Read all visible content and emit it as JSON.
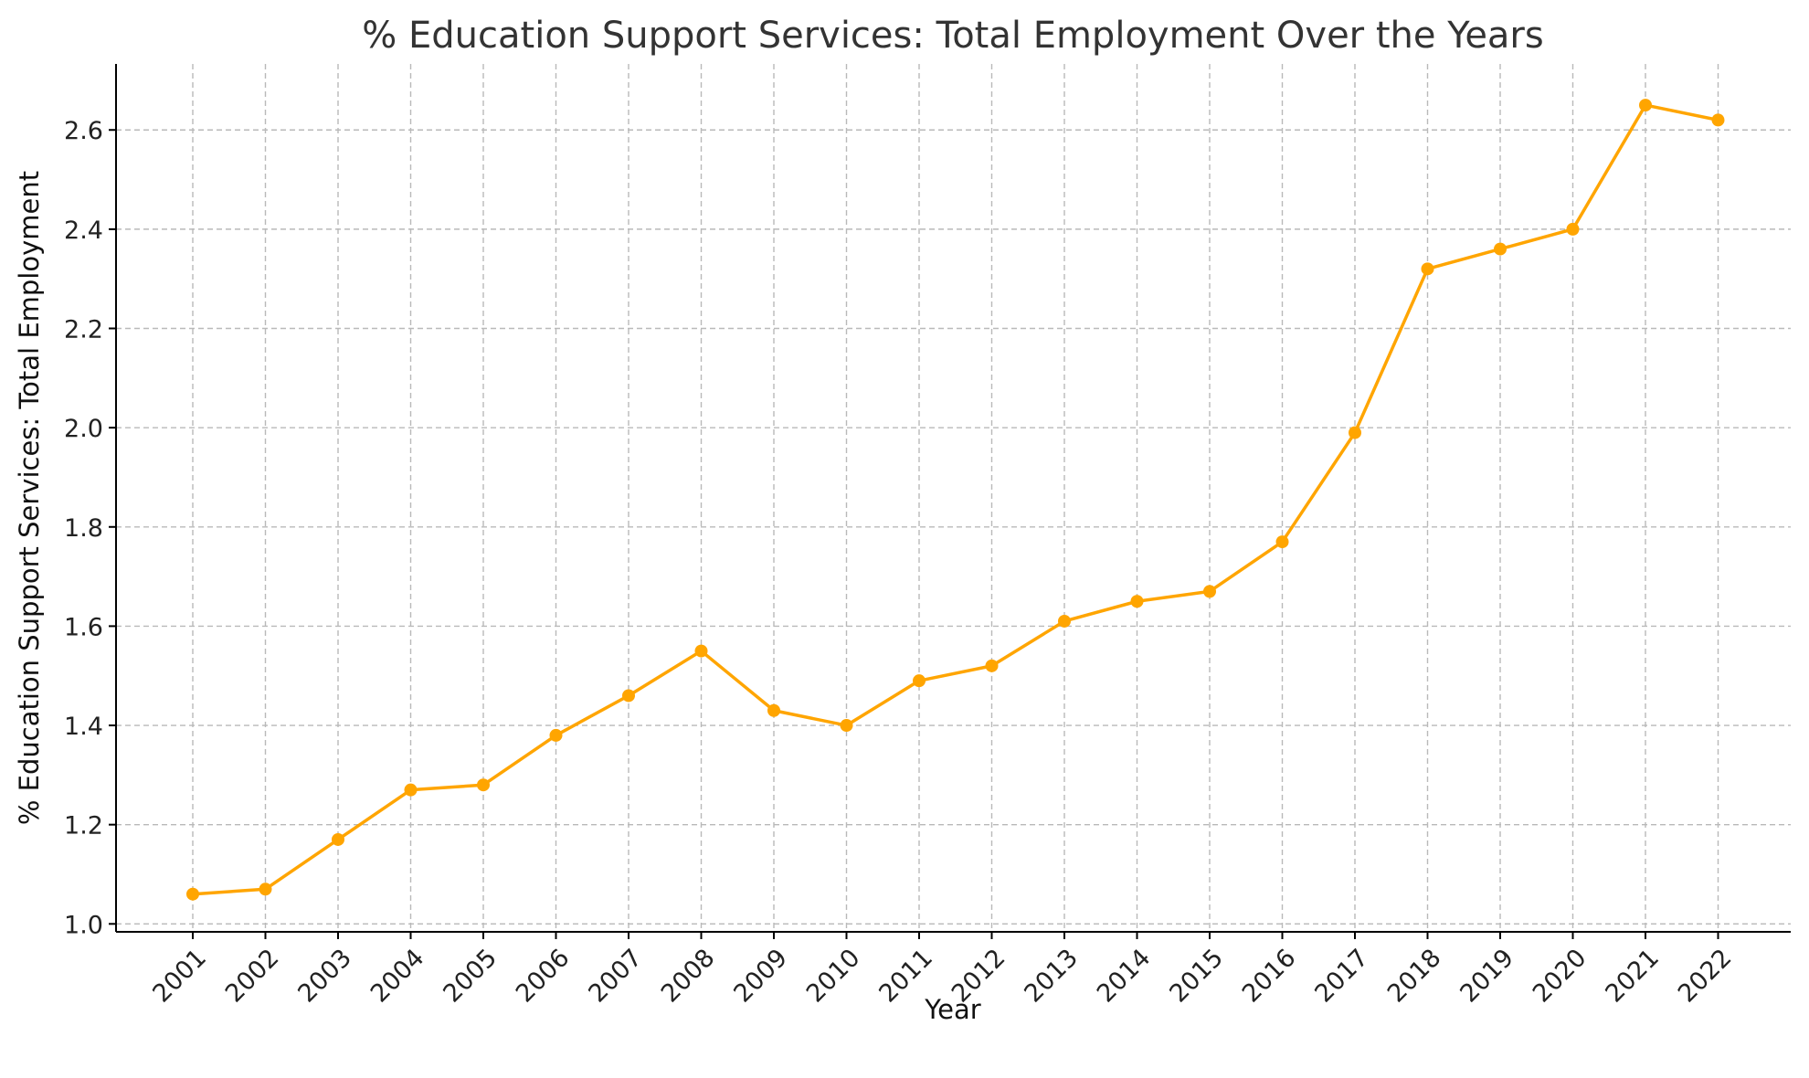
{
  "chart_data": {
    "type": "line",
    "title": "% Education Support Services: Total Employment Over the Years",
    "xlabel": "Year",
    "ylabel": "% Education Support Services: Total Employment",
    "x": [
      "2001",
      "2002",
      "2003",
      "2004",
      "2005",
      "2006",
      "2007",
      "2008",
      "2009",
      "2010",
      "2011",
      "2012",
      "2013",
      "2014",
      "2015",
      "2016",
      "2017",
      "2018",
      "2019",
      "2020",
      "2021",
      "2022"
    ],
    "series": [
      {
        "values": [
          1.06,
          1.07,
          1.17,
          1.27,
          1.28,
          1.38,
          1.46,
          1.55,
          1.43,
          1.4,
          1.49,
          1.52,
          1.61,
          1.65,
          1.67,
          1.77,
          1.99,
          2.32,
          2.36,
          2.4,
          2.65,
          2.62
        ],
        "color": "#FFA500"
      }
    ],
    "yticks": [
      "1.0",
      "1.2",
      "1.4",
      "1.6",
      "1.8",
      "2.0",
      "2.2",
      "2.4",
      "2.6"
    ],
    "ylim": [
      0.984,
      2.733
    ],
    "grid": true,
    "legend": "none",
    "marker": "circle"
  }
}
